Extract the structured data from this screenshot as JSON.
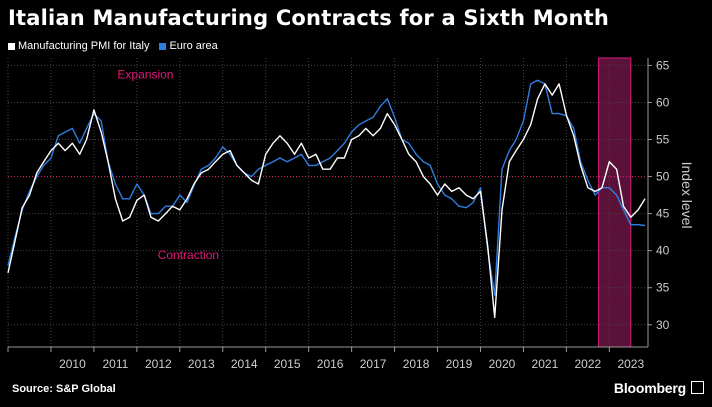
{
  "title": "Italian Manufacturing Contracts for a Sixth Month",
  "source": "Source: S&P Global",
  "brand": "Bloomberg",
  "colors": {
    "italy": "#ffffff",
    "euro": "#2f7de0",
    "annotation": "#e0187a",
    "shade": "#5a1238",
    "grid": "#444444"
  },
  "chart_data": {
    "type": "line",
    "title": "Italian Manufacturing Contracts for a Sixth Month",
    "ylabel": "Index level",
    "ylim": [
      27,
      66
    ],
    "yticks": [
      30,
      35,
      40,
      45,
      50,
      55,
      60,
      65
    ],
    "xlim": [
      2009.0,
      2023.9
    ],
    "xticks": [
      2010,
      2011,
      2012,
      2013,
      2014,
      2015,
      2016,
      2017,
      2018,
      2019,
      2020,
      2021,
      2022,
      2023
    ],
    "reference_line": 50,
    "annotations": [
      "Expansion",
      "Contraction"
    ],
    "shaded_period": [
      2022.75,
      2023.5
    ],
    "legend": "top-left",
    "series": [
      {
        "name": "Manufacturing PMI for Italy",
        "color": "#ffffff",
        "points": [
          [
            2009.0,
            37.0
          ],
          [
            2009.17,
            41.5
          ],
          [
            2009.33,
            45.8
          ],
          [
            2009.5,
            47.5
          ],
          [
            2009.67,
            50.5
          ],
          [
            2009.83,
            52.0
          ],
          [
            2010.0,
            53.5
          ],
          [
            2010.17,
            54.5
          ],
          [
            2010.33,
            53.5
          ],
          [
            2010.5,
            54.5
          ],
          [
            2010.67,
            53.0
          ],
          [
            2010.83,
            55.0
          ],
          [
            2011.0,
            59.0
          ],
          [
            2011.17,
            56.0
          ],
          [
            2011.33,
            52.0
          ],
          [
            2011.5,
            47.0
          ],
          [
            2011.67,
            44.0
          ],
          [
            2011.83,
            44.5
          ],
          [
            2012.0,
            46.8
          ],
          [
            2012.17,
            47.5
          ],
          [
            2012.33,
            44.5
          ],
          [
            2012.5,
            44.0
          ],
          [
            2012.67,
            45.0
          ],
          [
            2012.83,
            46.0
          ],
          [
            2013.0,
            45.5
          ],
          [
            2013.17,
            47.0
          ],
          [
            2013.33,
            49.0
          ],
          [
            2013.5,
            50.5
          ],
          [
            2013.67,
            51.0
          ],
          [
            2013.83,
            52.0
          ],
          [
            2014.0,
            53.0
          ],
          [
            2014.17,
            53.5
          ],
          [
            2014.33,
            51.5
          ],
          [
            2014.5,
            50.5
          ],
          [
            2014.67,
            49.5
          ],
          [
            2014.83,
            49.0
          ],
          [
            2015.0,
            53.0
          ],
          [
            2015.17,
            54.5
          ],
          [
            2015.33,
            55.5
          ],
          [
            2015.5,
            54.5
          ],
          [
            2015.67,
            53.0
          ],
          [
            2015.83,
            54.5
          ],
          [
            2016.0,
            52.5
          ],
          [
            2016.17,
            53.0
          ],
          [
            2016.33,
            51.0
          ],
          [
            2016.5,
            51.0
          ],
          [
            2016.67,
            52.5
          ],
          [
            2016.83,
            52.5
          ],
          [
            2017.0,
            55.0
          ],
          [
            2017.17,
            55.5
          ],
          [
            2017.33,
            56.5
          ],
          [
            2017.5,
            55.5
          ],
          [
            2017.67,
            56.5
          ],
          [
            2017.83,
            58.5
          ],
          [
            2018.0,
            57.0
          ],
          [
            2018.17,
            55.0
          ],
          [
            2018.33,
            53.0
          ],
          [
            2018.5,
            52.0
          ],
          [
            2018.67,
            50.0
          ],
          [
            2018.83,
            49.0
          ],
          [
            2019.0,
            47.5
          ],
          [
            2019.17,
            49.0
          ],
          [
            2019.33,
            48.0
          ],
          [
            2019.5,
            48.5
          ],
          [
            2019.67,
            47.5
          ],
          [
            2019.83,
            47.0
          ],
          [
            2020.0,
            48.0
          ],
          [
            2020.17,
            40.5
          ],
          [
            2020.33,
            31.0
          ],
          [
            2020.5,
            45.5
          ],
          [
            2020.67,
            52.0
          ],
          [
            2020.83,
            53.5
          ],
          [
            2021.0,
            55.0
          ],
          [
            2021.17,
            57.0
          ],
          [
            2021.33,
            60.5
          ],
          [
            2021.5,
            62.5
          ],
          [
            2021.67,
            61.0
          ],
          [
            2021.83,
            62.5
          ],
          [
            2022.0,
            58.3
          ],
          [
            2022.17,
            55.5
          ],
          [
            2022.33,
            51.5
          ],
          [
            2022.5,
            48.5
          ],
          [
            2022.67,
            48.0
          ],
          [
            2022.83,
            48.5
          ],
          [
            2023.0,
            52.0
          ],
          [
            2023.17,
            51.0
          ],
          [
            2023.33,
            46.0
          ],
          [
            2023.5,
            44.5
          ],
          [
            2023.67,
            45.5
          ],
          [
            2023.83,
            47.0
          ]
        ]
      },
      {
        "name": "Euro area",
        "color": "#2f7de0",
        "points": [
          [
            2009.0,
            38.0
          ],
          [
            2009.17,
            42.0
          ],
          [
            2009.33,
            45.5
          ],
          [
            2009.5,
            48.0
          ],
          [
            2009.67,
            50.0
          ],
          [
            2009.83,
            51.5
          ],
          [
            2010.0,
            52.5
          ],
          [
            2010.17,
            55.5
          ],
          [
            2010.33,
            56.0
          ],
          [
            2010.5,
            56.5
          ],
          [
            2010.67,
            54.5
          ],
          [
            2010.83,
            56.5
          ],
          [
            2011.0,
            58.5
          ],
          [
            2011.17,
            57.5
          ],
          [
            2011.33,
            52.0
          ],
          [
            2011.5,
            49.0
          ],
          [
            2011.67,
            47.0
          ],
          [
            2011.83,
            47.0
          ],
          [
            2012.0,
            49.0
          ],
          [
            2012.17,
            47.5
          ],
          [
            2012.33,
            45.0
          ],
          [
            2012.5,
            45.0
          ],
          [
            2012.67,
            46.0
          ],
          [
            2012.83,
            46.0
          ],
          [
            2013.0,
            47.5
          ],
          [
            2013.17,
            46.5
          ],
          [
            2013.33,
            48.8
          ],
          [
            2013.5,
            51.0
          ],
          [
            2013.67,
            51.5
          ],
          [
            2013.83,
            52.5
          ],
          [
            2014.0,
            54.0
          ],
          [
            2014.17,
            53.0
          ],
          [
            2014.33,
            51.5
          ],
          [
            2014.5,
            50.5
          ],
          [
            2014.67,
            50.0
          ],
          [
            2014.83,
            51.0
          ],
          [
            2015.0,
            51.5
          ],
          [
            2015.17,
            52.0
          ],
          [
            2015.33,
            52.5
          ],
          [
            2015.5,
            52.0
          ],
          [
            2015.67,
            52.5
          ],
          [
            2015.83,
            53.0
          ],
          [
            2016.0,
            51.5
          ],
          [
            2016.17,
            51.5
          ],
          [
            2016.33,
            52.0
          ],
          [
            2016.5,
            52.5
          ],
          [
            2016.67,
            53.5
          ],
          [
            2016.83,
            54.5
          ],
          [
            2017.0,
            56.0
          ],
          [
            2017.17,
            57.0
          ],
          [
            2017.33,
            57.5
          ],
          [
            2017.5,
            58.0
          ],
          [
            2017.67,
            59.5
          ],
          [
            2017.83,
            60.5
          ],
          [
            2018.0,
            58.0
          ],
          [
            2018.17,
            55.0
          ],
          [
            2018.33,
            54.5
          ],
          [
            2018.5,
            53.0
          ],
          [
            2018.67,
            52.0
          ],
          [
            2018.83,
            51.5
          ],
          [
            2019.0,
            49.0
          ],
          [
            2019.17,
            47.5
          ],
          [
            2019.33,
            47.0
          ],
          [
            2019.5,
            46.0
          ],
          [
            2019.67,
            45.8
          ],
          [
            2019.83,
            46.5
          ],
          [
            2020.0,
            48.5
          ],
          [
            2020.17,
            40.0
          ],
          [
            2020.33,
            34.0
          ],
          [
            2020.5,
            51.0
          ],
          [
            2020.67,
            53.5
          ],
          [
            2020.83,
            55.0
          ],
          [
            2021.0,
            57.5
          ],
          [
            2021.17,
            62.5
          ],
          [
            2021.33,
            63.0
          ],
          [
            2021.5,
            62.5
          ],
          [
            2021.67,
            58.5
          ],
          [
            2021.83,
            58.5
          ],
          [
            2022.0,
            58.2
          ],
          [
            2022.17,
            56.5
          ],
          [
            2022.33,
            52.0
          ],
          [
            2022.5,
            49.5
          ],
          [
            2022.67,
            47.5
          ],
          [
            2022.83,
            48.5
          ],
          [
            2023.0,
            48.5
          ],
          [
            2023.17,
            47.5
          ],
          [
            2023.33,
            45.5
          ],
          [
            2023.5,
            43.5
          ],
          [
            2023.67,
            43.5
          ],
          [
            2023.83,
            43.4
          ]
        ]
      }
    ]
  }
}
